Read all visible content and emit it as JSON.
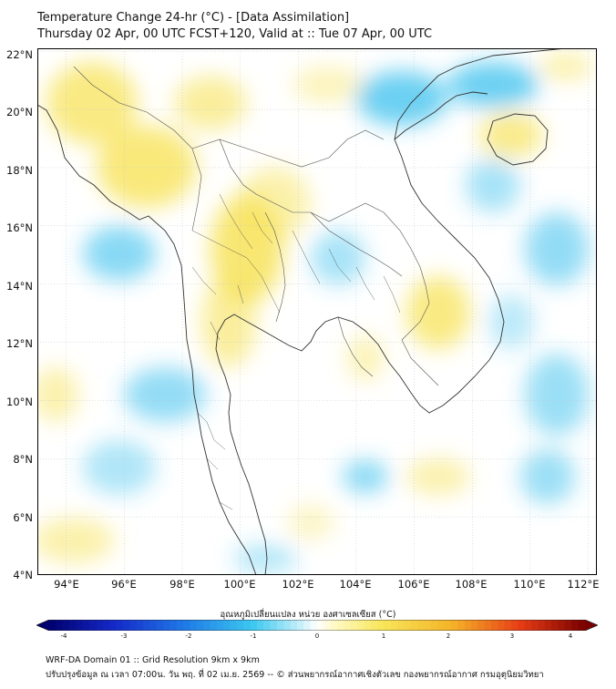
{
  "header": {
    "title": "Temperature Change 24-hr (°C) - [Data Assimilation]",
    "subtitle": "Thursday 02 Apr, 00 UTC FCST+120, Valid at :: Tue 07 Apr, 00 UTC"
  },
  "map": {
    "lon_range": [
      93,
      112.3
    ],
    "lat_range": [
      4,
      22.1
    ],
    "lat_labels": [
      "22°N",
      "20°N",
      "18°N",
      "16°N",
      "14°N",
      "12°N",
      "10°N",
      "8°N",
      "6°N",
      "4°N"
    ],
    "lon_labels": [
      "94°E",
      "96°E",
      "98°E",
      "100°E",
      "102°E",
      "104°E",
      "106°E",
      "108°E",
      "110°E",
      "112°E"
    ],
    "background_color": "#ffffff",
    "warm_color": "#f7e35a",
    "cool_color": "#39c0ee",
    "coastline_color": "#333333"
  },
  "colorbar": {
    "title": "อุณหภูมิเปลี่ยนแปลง หน่วย องศาเซลเซียส (°C)",
    "ticks": [
      "-4",
      "-3",
      "-2",
      "-1",
      "0",
      "1",
      "2",
      "3",
      "4"
    ],
    "min": -4,
    "max": 4
  },
  "footer": {
    "line1": "WRF-DA Domain 01 :: Grid Resolution 9km x 9km",
    "line2": "ปรับปรุงข้อมูล ณ เวลา 07:00น. วัน พฤ. ที่ 02 เม.ย. 2569 -- © ส่วนพยากรณ์อากาศเชิงตัวเลข กองพยากรณ์อากาศ กรมอุตุนิยมวิทยา"
  }
}
